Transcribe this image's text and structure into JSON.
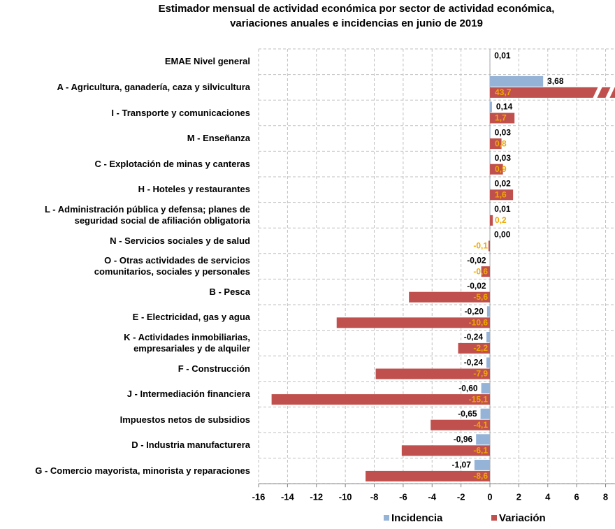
{
  "chart_data": {
    "type": "bar",
    "orientation": "horizontal",
    "title": [
      "Estimador mensual de actividad económica por sector de actividad económica,",
      "variaciones anuales e incidencias en junio de 2019"
    ],
    "categories": [
      "EMAE Nivel general",
      "A -  Agricultura, ganadería, caza y silvicultura",
      "I - Transporte y comunicaciones",
      "M - Enseñanza",
      "C - Explotación de minas y canteras",
      "H - Hoteles y restaurantes",
      "L - Administración pública y defensa; planes de\nseguridad social de afiliación obligatoria",
      "N - Servicios sociales y de salud",
      "O - Otras actividades de servicios\ncomunitarios, sociales y personales",
      "B - Pesca",
      "E - Electricidad, gas y agua",
      "K - Actividades inmobiliarias,\nempresariales y de alquiler",
      "F - Construcción",
      "J - Intermediación financiera",
      "Impuestos netos de subsidios",
      "D - Industria manufacturera",
      "G - Comercio mayorista, minorista y reparaciones"
    ],
    "series": [
      {
        "name": "Incidencia",
        "color": "#95b3d7",
        "values": [
          0.01,
          3.68,
          0.14,
          0.03,
          0.03,
          0.02,
          0.01,
          0.0,
          -0.02,
          -0.02,
          -0.2,
          -0.24,
          -0.24,
          -0.6,
          -0.65,
          -0.96,
          -1.07
        ],
        "value_labels": [
          "0,01",
          "3,68",
          "0,14",
          "0,03",
          "0,03",
          "0,02",
          "0,01",
          "0,00",
          "-0,02",
          "-0,02",
          "-0,20",
          "-0,24",
          "-0,24",
          "-0,60",
          "-0,65",
          "-0,96",
          "-1,07"
        ]
      },
      {
        "name": "Variación",
        "color": "#c0504d",
        "values": [
          null,
          43.7,
          1.7,
          0.8,
          0.9,
          1.6,
          0.2,
          -0.1,
          -0.6,
          -5.6,
          -10.6,
          -2.2,
          -7.9,
          -15.1,
          -4.1,
          -6.1,
          -8.6
        ],
        "value_labels": [
          null,
          "43,7",
          "1,7",
          "0,8",
          "0,9",
          "1,6",
          "0,2",
          "-0,1",
          "-0,6",
          "-5,6",
          "-10,6",
          "-2,2",
          "-7,9",
          "-15,1",
          "-4,1",
          "-6,1",
          "-8,6"
        ]
      }
    ],
    "xlim": [
      -16,
      8.65
    ],
    "xticks": [
      -16,
      -14,
      -12,
      -10,
      -8,
      -6,
      -4,
      -2,
      0,
      2,
      4,
      6,
      8
    ],
    "grid": true,
    "legend": "bottom"
  }
}
